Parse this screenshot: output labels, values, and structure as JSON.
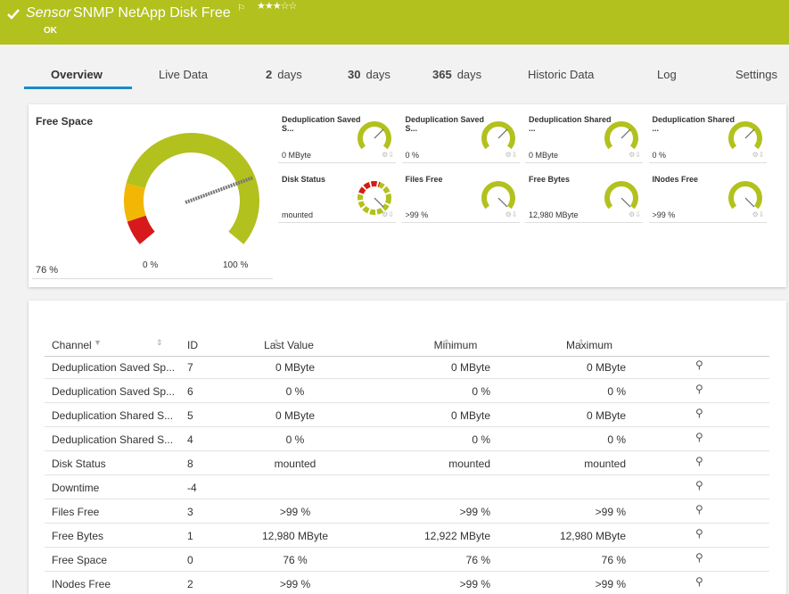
{
  "header": {
    "sensor_label": "Sensor",
    "title": "SNMP NetApp Disk Free",
    "status": "OK"
  },
  "tabs": [
    {
      "label": "Overview"
    },
    {
      "label": "Live Data"
    },
    {
      "count": "2",
      "label": "days"
    },
    {
      "count": "30",
      "label": "days"
    },
    {
      "count": "365",
      "label": "days"
    },
    {
      "label": "Historic Data"
    },
    {
      "label": "Log"
    },
    {
      "label": "Settings"
    }
  ],
  "main_gauge": {
    "title": "Free Space",
    "value": "76 %",
    "min_label": "0 %",
    "max_label": "100 %"
  },
  "small_gauges": [
    {
      "title": "Deduplication Saved S...",
      "value": "0 MByte"
    },
    {
      "title": "Deduplication Saved S...",
      "value": "0 %"
    },
    {
      "title": "Deduplication Shared ...",
      "value": "0 MByte"
    },
    {
      "title": "Deduplication Shared ...",
      "value": "0 %"
    },
    {
      "title": "Disk Status",
      "value": "mounted"
    },
    {
      "title": "Files Free",
      "value": ">99 %"
    },
    {
      "title": "Free Bytes",
      "value": "12,980 MByte"
    },
    {
      "title": "INodes Free",
      "value": ">99 %"
    }
  ],
  "table": {
    "columns": [
      "Channel",
      "ID",
      "Last Value",
      "Minimum",
      "Maximum"
    ],
    "rows": [
      [
        "Deduplication Saved Sp...",
        7,
        "0 MByte",
        "0 MByte",
        "0 MByte"
      ],
      [
        "Deduplication Saved Sp...",
        6,
        "0 %",
        "0 %",
        "0 %"
      ],
      [
        "Deduplication Shared S...",
        5,
        "0 MByte",
        "0 MByte",
        "0 MByte"
      ],
      [
        "Deduplication Shared S...",
        4,
        "0 %",
        "0 %",
        "0 %"
      ],
      [
        "Disk Status",
        8,
        "mounted",
        "mounted",
        "mounted"
      ],
      [
        "Downtime",
        -4,
        "",
        "",
        ""
      ],
      [
        "Files Free",
        3,
        ">99 %",
        ">99 %",
        ">99 %"
      ],
      [
        "Free Bytes",
        1,
        "12,980 MByte",
        "12,922 MByte",
        "12,980 MByte"
      ],
      [
        "Free Space",
        0,
        "76 %",
        "76 %",
        "76 %"
      ],
      [
        "INodes Free",
        2,
        ">99 %",
        ">99 %",
        ">99 %"
      ]
    ]
  }
}
